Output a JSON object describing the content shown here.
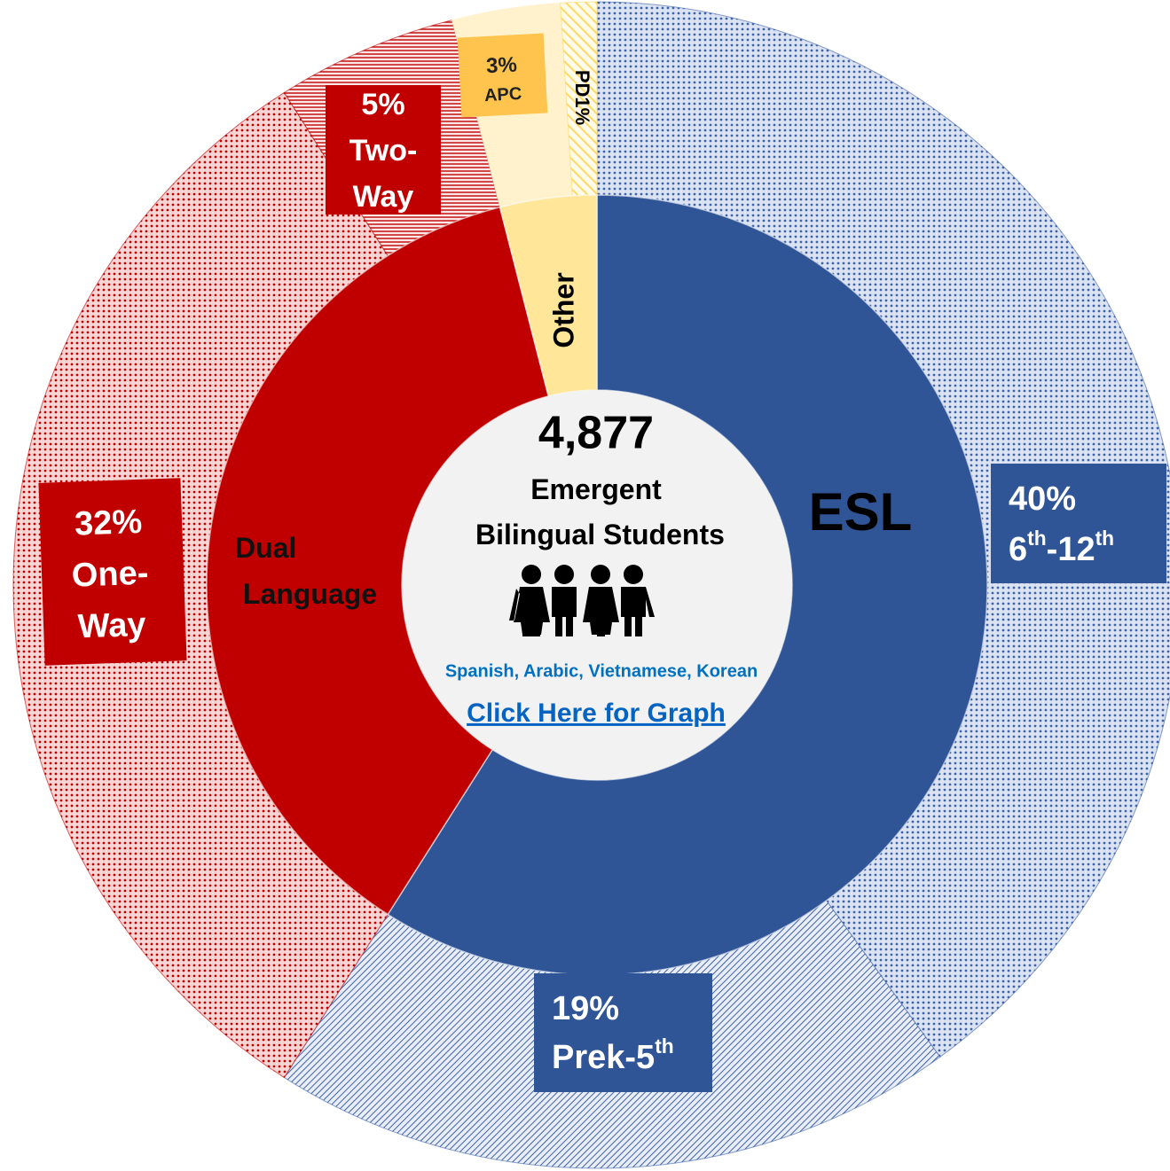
{
  "chart_data": {
    "type": "sunburst",
    "total": {
      "value": 4877,
      "label": "4,877"
    },
    "center_title": "Emergent Bilingual Students",
    "languages": "Spanish, Arabic, Vietnamese, Korean",
    "link": "Click Here for Graph",
    "inner": {
      "categories": [
        "ESL",
        "Dual Language",
        "Other"
      ],
      "values": [
        59,
        37,
        4
      ],
      "colors": [
        "#2f5597",
        "#c00000",
        "#ffe699"
      ]
    },
    "outer": {
      "categories": [
        "6th-12th",
        "Prek-5th",
        "One-Way",
        "Two-Way",
        "APC",
        "PD"
      ],
      "values": [
        40,
        19,
        32,
        5,
        3,
        1
      ],
      "value_labels": [
        "40%",
        "19%",
        "32%",
        "5%",
        "3%",
        "1%"
      ],
      "colors": [
        "#3f63a8",
        "#3f63a8",
        "#c00000",
        "#c00000",
        "#fff2cc",
        "#ffd966"
      ]
    }
  }
}
